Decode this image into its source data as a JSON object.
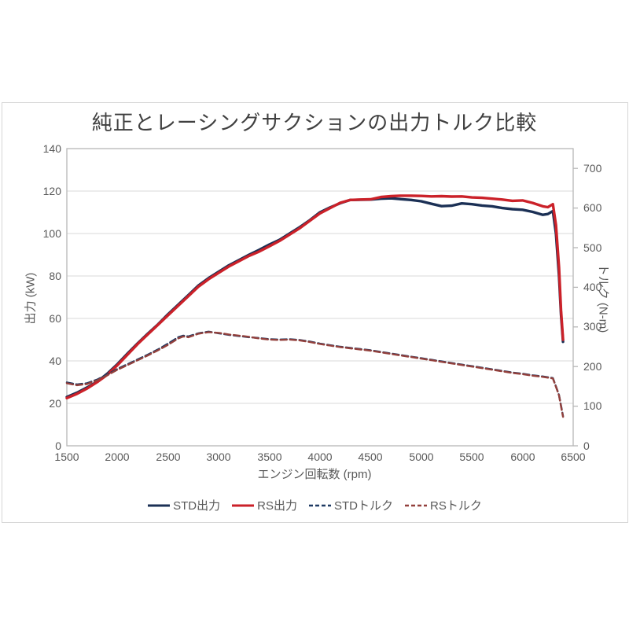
{
  "chart_data": {
    "type": "line",
    "title": "純正とレーシングサクションの出力トルク比較",
    "xlabel": "エンジン回転数 (rpm)",
    "ylabel_left": "出力 (kW)",
    "ylabel_right": "トルク (N-m)",
    "x_range": [
      1500,
      6500
    ],
    "x_ticks": [
      1500,
      2000,
      2500,
      3000,
      3500,
      4000,
      4500,
      5000,
      5500,
      6000,
      6500
    ],
    "y_left_range": [
      0,
      140
    ],
    "y_left_ticks": [
      0,
      20,
      40,
      60,
      80,
      100,
      120,
      140
    ],
    "y_right_range": [
      0,
      750
    ],
    "y_right_ticks": [
      0,
      100,
      200,
      300,
      400,
      500,
      600,
      700
    ],
    "grid": "horizontal-only",
    "legend_position": "bottom",
    "colors": {
      "std_power": "#1b3055",
      "rs_power": "#cb2129",
      "std_torque": "#1f3a63",
      "rs_torque": "#93403c",
      "gridline": "#d9d9d9",
      "axis": "#b7b7b7",
      "text": "#595959",
      "title_text": "#404040"
    },
    "series": [
      {
        "id": "std-power",
        "name": "STD出力",
        "axis": "left",
        "color": "#1b3055",
        "dashed": false,
        "points": [
          [
            1500,
            23
          ],
          [
            1600,
            25
          ],
          [
            1700,
            27.5
          ],
          [
            1800,
            30.2
          ],
          [
            1900,
            34
          ],
          [
            2000,
            38.5
          ],
          [
            2100,
            43.5
          ],
          [
            2200,
            48.3
          ],
          [
            2300,
            52.8
          ],
          [
            2400,
            57.2
          ],
          [
            2500,
            62
          ],
          [
            2600,
            66.5
          ],
          [
            2700,
            71
          ],
          [
            2800,
            75.5
          ],
          [
            2900,
            79
          ],
          [
            3000,
            82
          ],
          [
            3100,
            85
          ],
          [
            3200,
            87.5
          ],
          [
            3300,
            90
          ],
          [
            3400,
            92.3
          ],
          [
            3500,
            94.8
          ],
          [
            3600,
            97
          ],
          [
            3700,
            100
          ],
          [
            3800,
            103
          ],
          [
            3900,
            106.3
          ],
          [
            4000,
            110
          ],
          [
            4100,
            112.3
          ],
          [
            4200,
            114.3
          ],
          [
            4300,
            115.8
          ],
          [
            4400,
            115.9
          ],
          [
            4500,
            116
          ],
          [
            4600,
            116.4
          ],
          [
            4700,
            116.6
          ],
          [
            4800,
            116.2
          ],
          [
            4900,
            115.8
          ],
          [
            5000,
            115.2
          ],
          [
            5100,
            114
          ],
          [
            5200,
            112.9
          ],
          [
            5300,
            113.1
          ],
          [
            5400,
            114.2
          ],
          [
            5500,
            113.8
          ],
          [
            5600,
            113.2
          ],
          [
            5700,
            112.8
          ],
          [
            5800,
            112
          ],
          [
            5900,
            111.5
          ],
          [
            6000,
            111.2
          ],
          [
            6100,
            110.2
          ],
          [
            6200,
            108.8
          ],
          [
            6250,
            109.2
          ],
          [
            6300,
            110.6
          ],
          [
            6330,
            100
          ],
          [
            6360,
            80
          ],
          [
            6380,
            62
          ],
          [
            6400,
            49
          ]
        ]
      },
      {
        "id": "rs-power",
        "name": "RS出力",
        "axis": "left",
        "color": "#cb2129",
        "dashed": false,
        "points": [
          [
            1500,
            22.5
          ],
          [
            1600,
            24.5
          ],
          [
            1700,
            27
          ],
          [
            1800,
            30
          ],
          [
            1900,
            33.5
          ],
          [
            2000,
            38
          ],
          [
            2100,
            43
          ],
          [
            2200,
            48
          ],
          [
            2300,
            52.5
          ],
          [
            2400,
            57
          ],
          [
            2500,
            61.5
          ],
          [
            2600,
            66
          ],
          [
            2700,
            70.5
          ],
          [
            2800,
            75
          ],
          [
            2900,
            78.5
          ],
          [
            3000,
            81.5
          ],
          [
            3100,
            84.5
          ],
          [
            3200,
            87
          ],
          [
            3300,
            89.5
          ],
          [
            3400,
            91.5
          ],
          [
            3500,
            94
          ],
          [
            3600,
            96.5
          ],
          [
            3700,
            99.5
          ],
          [
            3800,
            102.5
          ],
          [
            3900,
            106
          ],
          [
            4000,
            109.5
          ],
          [
            4100,
            112
          ],
          [
            4200,
            114.5
          ],
          [
            4300,
            115.8
          ],
          [
            4400,
            116
          ],
          [
            4500,
            116.1
          ],
          [
            4600,
            117.2
          ],
          [
            4700,
            117.6
          ],
          [
            4800,
            117.8
          ],
          [
            4900,
            117.8
          ],
          [
            5000,
            117.7
          ],
          [
            5100,
            117.5
          ],
          [
            5200,
            117.6
          ],
          [
            5300,
            117.4
          ],
          [
            5400,
            117.5
          ],
          [
            5500,
            117
          ],
          [
            5600,
            116.8
          ],
          [
            5700,
            116.4
          ],
          [
            5800,
            116
          ],
          [
            5900,
            115.4
          ],
          [
            6000,
            115.6
          ],
          [
            6100,
            114.4
          ],
          [
            6200,
            112.8
          ],
          [
            6250,
            112.4
          ],
          [
            6300,
            113.8
          ],
          [
            6330,
            104
          ],
          [
            6360,
            84
          ],
          [
            6380,
            64
          ],
          [
            6400,
            50
          ]
        ]
      },
      {
        "id": "std-torque",
        "name": "STDトルク",
        "axis": "right",
        "color": "#1f3a63",
        "dashed": true,
        "points": [
          [
            1500,
            160
          ],
          [
            1600,
            155
          ],
          [
            1700,
            158
          ],
          [
            1800,
            167
          ],
          [
            1900,
            180
          ],
          [
            2000,
            194
          ],
          [
            2100,
            206
          ],
          [
            2200,
            218
          ],
          [
            2300,
            230
          ],
          [
            2400,
            243
          ],
          [
            2500,
            258
          ],
          [
            2600,
            274
          ],
          [
            2650,
            278
          ],
          [
            2700,
            276
          ],
          [
            2800,
            284
          ],
          [
            2900,
            288
          ],
          [
            3000,
            284
          ],
          [
            3100,
            280
          ],
          [
            3200,
            277
          ],
          [
            3300,
            274
          ],
          [
            3400,
            272
          ],
          [
            3500,
            269
          ],
          [
            3600,
            268
          ],
          [
            3700,
            269
          ],
          [
            3800,
            267
          ],
          [
            3900,
            263
          ],
          [
            4000,
            258
          ],
          [
            4100,
            254
          ],
          [
            4200,
            250
          ],
          [
            4300,
            247
          ],
          [
            4400,
            244
          ],
          [
            4500,
            241
          ],
          [
            4600,
            237
          ],
          [
            4700,
            233
          ],
          [
            4800,
            229
          ],
          [
            4900,
            225
          ],
          [
            5000,
            221
          ],
          [
            5100,
            217
          ],
          [
            5200,
            213
          ],
          [
            5300,
            209
          ],
          [
            5400,
            205
          ],
          [
            5500,
            201
          ],
          [
            5600,
            197
          ],
          [
            5700,
            193
          ],
          [
            5800,
            189
          ],
          [
            5900,
            185
          ],
          [
            6000,
            182
          ],
          [
            6100,
            178
          ],
          [
            6200,
            175
          ],
          [
            6250,
            173
          ],
          [
            6300,
            171
          ],
          [
            6330,
            150
          ],
          [
            6360,
            128
          ],
          [
            6380,
            102
          ],
          [
            6400,
            75
          ]
        ]
      },
      {
        "id": "rs-torque",
        "name": "RSトルク",
        "axis": "right",
        "color": "#93403c",
        "dashed": true,
        "points": [
          [
            1500,
            158
          ],
          [
            1600,
            153
          ],
          [
            1700,
            156
          ],
          [
            1800,
            165
          ],
          [
            1900,
            178
          ],
          [
            2000,
            192
          ],
          [
            2100,
            204
          ],
          [
            2200,
            216
          ],
          [
            2300,
            228
          ],
          [
            2400,
            241
          ],
          [
            2500,
            255
          ],
          [
            2600,
            271
          ],
          [
            2650,
            276
          ],
          [
            2700,
            274
          ],
          [
            2800,
            283
          ],
          [
            2900,
            287
          ],
          [
            3000,
            285
          ],
          [
            3100,
            281
          ],
          [
            3200,
            278
          ],
          [
            3300,
            275
          ],
          [
            3400,
            271
          ],
          [
            3500,
            268
          ],
          [
            3600,
            267
          ],
          [
            3700,
            268
          ],
          [
            3800,
            266
          ],
          [
            3900,
            262
          ],
          [
            4000,
            257
          ],
          [
            4100,
            253
          ],
          [
            4200,
            249
          ],
          [
            4300,
            246
          ],
          [
            4400,
            243
          ],
          [
            4500,
            240
          ],
          [
            4600,
            236
          ],
          [
            4700,
            232
          ],
          [
            4800,
            228
          ],
          [
            4900,
            224
          ],
          [
            5000,
            220
          ],
          [
            5100,
            216
          ],
          [
            5200,
            212
          ],
          [
            5300,
            208
          ],
          [
            5400,
            204
          ],
          [
            5500,
            200
          ],
          [
            5600,
            196
          ],
          [
            5700,
            192
          ],
          [
            5800,
            188
          ],
          [
            5900,
            184
          ],
          [
            6000,
            181
          ],
          [
            6100,
            177
          ],
          [
            6200,
            174
          ],
          [
            6250,
            172
          ],
          [
            6300,
            170
          ],
          [
            6330,
            149
          ],
          [
            6360,
            127
          ],
          [
            6380,
            100
          ],
          [
            6400,
            73
          ]
        ]
      }
    ]
  }
}
